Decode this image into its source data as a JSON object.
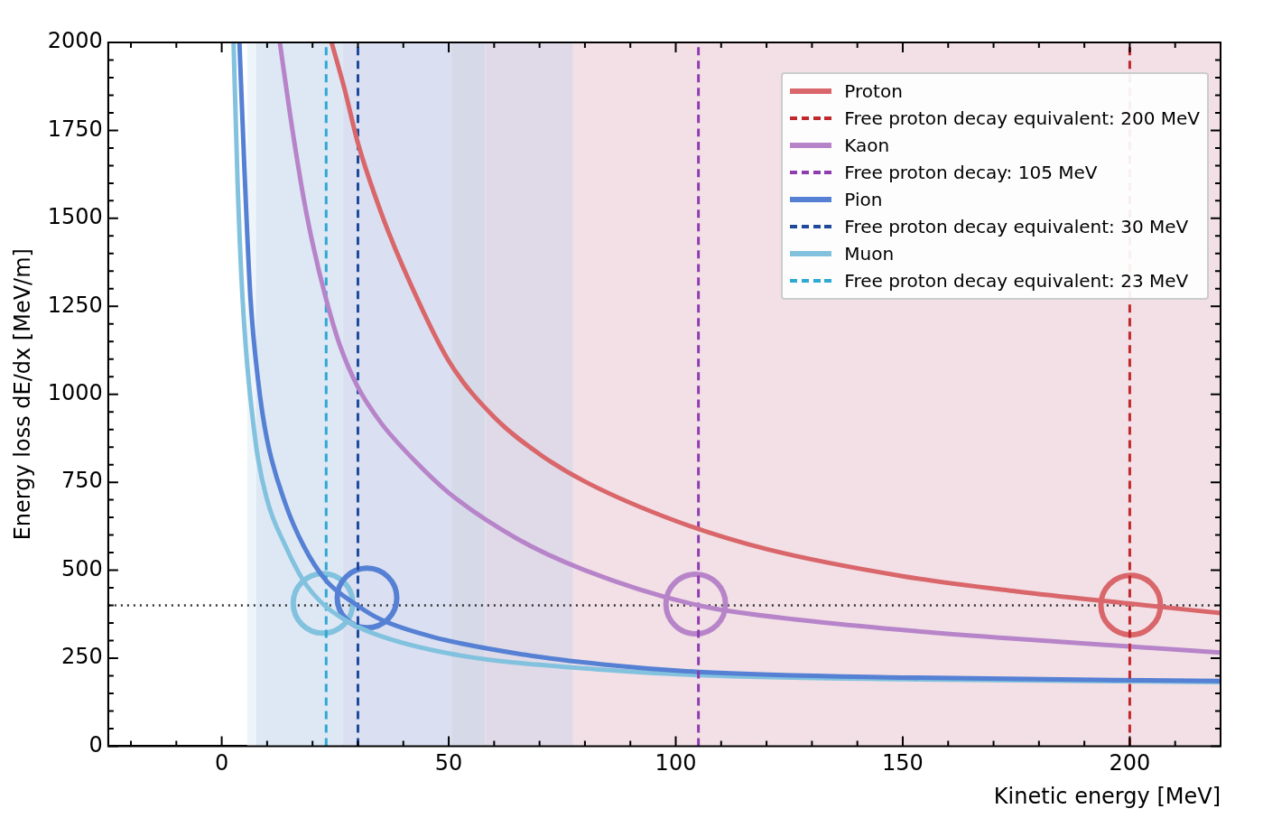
{
  "chart_data": {
    "type": "line",
    "xlabel": "Kinetic energy [MeV]",
    "ylabel": "Energy loss dE/dx [MeV/m]",
    "xlim": [
      -25,
      220
    ],
    "ylim": [
      0,
      2000
    ],
    "xticks": [
      {
        "value": -20,
        "label": null
      },
      {
        "value": -10,
        "label": null
      },
      0,
      {
        "value": 10,
        "label": null
      },
      {
        "value": 20,
        "label": null
      },
      {
        "value": 30,
        "label": null
      },
      {
        "value": 40,
        "label": null
      },
      50,
      {
        "value": 60,
        "label": null
      },
      {
        "value": 70,
        "label": null
      },
      {
        "value": 80,
        "label": null
      },
      {
        "value": 90,
        "label": null
      },
      100,
      {
        "value": 110,
        "label": null
      },
      {
        "value": 120,
        "label": null
      },
      {
        "value": 130,
        "label": null
      },
      {
        "value": 140,
        "label": null
      },
      150,
      {
        "value": 160,
        "label": null
      },
      {
        "value": 170,
        "label": null
      },
      {
        "value": 180,
        "label": null
      },
      {
        "value": 190,
        "label": null
      },
      200,
      {
        "value": 210,
        "label": null
      },
      {
        "value": 220,
        "label": null
      }
    ],
    "yticks": [
      0,
      {
        "value": 50,
        "label": null
      },
      {
        "value": 100,
        "label": null
      },
      {
        "value": 150,
        "label": null
      },
      {
        "value": 200,
        "label": null
      },
      250,
      {
        "value": 300,
        "label": null
      },
      {
        "value": 350,
        "label": null
      },
      {
        "value": 400,
        "label": null
      },
      {
        "value": 450,
        "label": null
      },
      500,
      {
        "value": 550,
        "label": null
      },
      {
        "value": 600,
        "label": null
      },
      {
        "value": 650,
        "label": null
      },
      {
        "value": 700,
        "label": null
      },
      750,
      {
        "value": 800,
        "label": null
      },
      {
        "value": 850,
        "label": null
      },
      {
        "value": 900,
        "label": null
      },
      {
        "value": 950,
        "label": null
      },
      1000,
      {
        "value": 1050,
        "label": null
      },
      {
        "value": 1100,
        "label": null
      },
      {
        "value": 1150,
        "label": null
      },
      {
        "value": 1200,
        "label": null
      },
      1250,
      {
        "value": 1300,
        "label": null
      },
      {
        "value": 1350,
        "label": null
      },
      {
        "value": 1400,
        "label": null
      },
      {
        "value": 1450,
        "label": null
      },
      1500,
      {
        "value": 1550,
        "label": null
      },
      {
        "value": 1600,
        "label": null
      },
      {
        "value": 1650,
        "label": null
      },
      {
        "value": 1700,
        "label": null
      },
      1750,
      {
        "value": 1800,
        "label": null
      },
      {
        "value": 1850,
        "label": null
      },
      {
        "value": 1900,
        "label": null
      },
      {
        "value": 1950,
        "label": null
      },
      2000
    ],
    "legend": "top right",
    "series": [
      {
        "name": "Proton",
        "color": "#d9666a",
        "x": [
          24.2,
          27,
          30,
          35,
          40,
          50,
          60,
          70,
          80,
          100,
          120,
          150,
          175,
          200,
          220
        ],
        "values": [
          2000,
          1870,
          1714,
          1520,
          1360,
          1095,
          935,
          830,
          752,
          640,
          560,
          483,
          440,
          405,
          378
        ]
      },
      {
        "name": "Free proton decay equivalent: 200 MeV",
        "color": "#c0282c",
        "line_style": "dashed",
        "x": [
          200,
          200
        ],
        "values": [
          0,
          2000
        ]
      },
      {
        "name": "Kaon",
        "color": "#b784c9",
        "x": [
          12.8,
          15,
          18,
          20,
          23,
          26,
          30,
          35,
          40,
          50,
          65,
          80,
          105,
          130,
          150,
          175,
          200,
          220
        ],
        "values": [
          2000,
          1800,
          1560,
          1430,
          1270,
          1140,
          1020,
          920,
          845,
          720,
          590,
          500,
          400,
          355,
          330,
          305,
          283,
          266
        ]
      },
      {
        "name": "Free proton decay: 105 MeV",
        "color": "#8e3cb0",
        "line_style": "dashed",
        "x": [
          105,
          105
        ],
        "values": [
          0,
          2000
        ]
      },
      {
        "name": "Pion",
        "color": "#5580d4",
        "x": [
          3.9,
          5,
          6.3,
          8,
          10,
          14,
          18,
          23,
          29.4,
          35,
          46.6,
          66.6,
          84,
          105,
          150,
          220
        ],
        "values": [
          2000,
          1640,
          1280,
          1040,
          870,
          690,
          570,
          470,
          404,
          360,
          310,
          260,
          232,
          211,
          195,
          185
        ]
      },
      {
        "name": "Free proton decay equivalent: 30 MeV",
        "color": "#1f4a9c",
        "line_style": "dashed",
        "x": [
          30,
          30
        ],
        "values": [
          0,
          2000
        ]
      },
      {
        "name": "Muon",
        "color": "#82c2de",
        "x": [
          2.6,
          3.5,
          4.6,
          7.4,
          10,
          14,
          18,
          22.3,
          27,
          33.4,
          50.6,
          84,
          105,
          150,
          220
        ],
        "values": [
          2000,
          1600,
          1270,
          870,
          700,
          570,
          470,
          404,
          360,
          320,
          262,
          217,
          202,
          190,
          182
        ]
      },
      {
        "name": "Free proton decay equivalent: 23 MeV",
        "color": "#2ea8d4",
        "line_style": "dashed",
        "x": [
          23,
          23
        ],
        "values": [
          0,
          2000
        ]
      },
      {
        "type": "scatter",
        "marker": "circle",
        "color": "#d9666a",
        "x": [
          200.2
        ],
        "values": [
          401
        ]
      },
      {
        "type": "scatter",
        "marker": "circle",
        "color": "#b784c9",
        "x": [
          104.4
        ],
        "values": [
          404
        ]
      },
      {
        "type": "scatter",
        "marker": "circle",
        "color": "#5580d4",
        "x": [
          32
        ],
        "values": [
          421
        ]
      },
      {
        "type": "scatter",
        "marker": "circle",
        "color": "#82c2de",
        "x": [
          22.3
        ],
        "values": [
          406
        ]
      }
    ],
    "ref_lines": [
      {
        "axis": "y",
        "value": 400,
        "color": "#333333",
        "line_style": "dotted"
      }
    ],
    "bands": [
      {
        "axis": "x",
        "from": 5.6,
        "to": 7.6,
        "color": "#eef5fa"
      },
      {
        "axis": "x",
        "from": 7.6,
        "to": 26.6,
        "color": "#dde8f4"
      },
      {
        "axis": "x",
        "from": 26.6,
        "to": 50.6,
        "color": "#dae0f1"
      },
      {
        "axis": "x",
        "from": 50.6,
        "to": 58,
        "color": "#d6d9e8"
      },
      {
        "axis": "x",
        "from": 58,
        "to": 77.4,
        "color": "#e0dae8"
      },
      {
        "axis": "x",
        "from": 77.4,
        "to": 220,
        "color": "#f2e0e6"
      }
    ]
  }
}
